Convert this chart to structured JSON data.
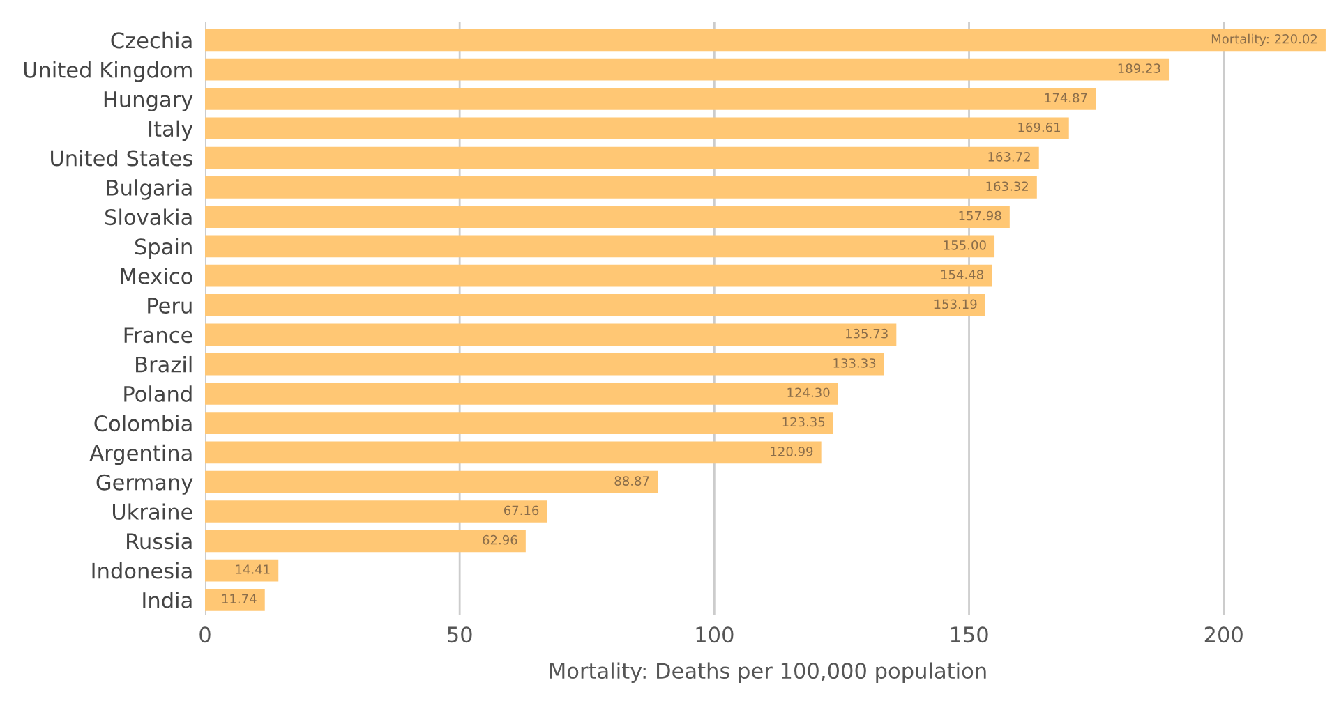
{
  "chart_data": {
    "type": "bar",
    "orientation": "horizontal",
    "xlabel": "Mortality: Deaths per 100,000 population",
    "categories": [
      "Czechia",
      "United Kingdom",
      "Hungary",
      "Italy",
      "United States",
      "Bulgaria",
      "Slovakia",
      "Spain",
      "Mexico",
      "Peru",
      "France",
      "Brazil",
      "Poland",
      "Colombia",
      "Argentina",
      "Germany",
      "Ukraine",
      "Russia",
      "Indonesia",
      "India"
    ],
    "values": [
      220.02,
      189.23,
      174.87,
      169.61,
      163.72,
      163.32,
      157.98,
      155.0,
      154.48,
      153.19,
      135.73,
      133.33,
      124.3,
      123.35,
      120.99,
      88.87,
      67.16,
      62.96,
      14.41,
      11.74
    ],
    "value_labels": [
      "Mortality: 220.02",
      "189.23",
      "174.87",
      "169.61",
      "163.72",
      "163.32",
      "157.98",
      "155.00",
      "154.48",
      "153.19",
      "135.73",
      "133.33",
      "124.30",
      "123.35",
      "120.99",
      "88.87",
      "67.16",
      "62.96",
      "14.41",
      "11.74"
    ],
    "color": "#ffc774",
    "xlim": [
      0,
      221
    ],
    "xticks": [
      0,
      50,
      100,
      150,
      200
    ],
    "grid": "x",
    "legend": false
  }
}
